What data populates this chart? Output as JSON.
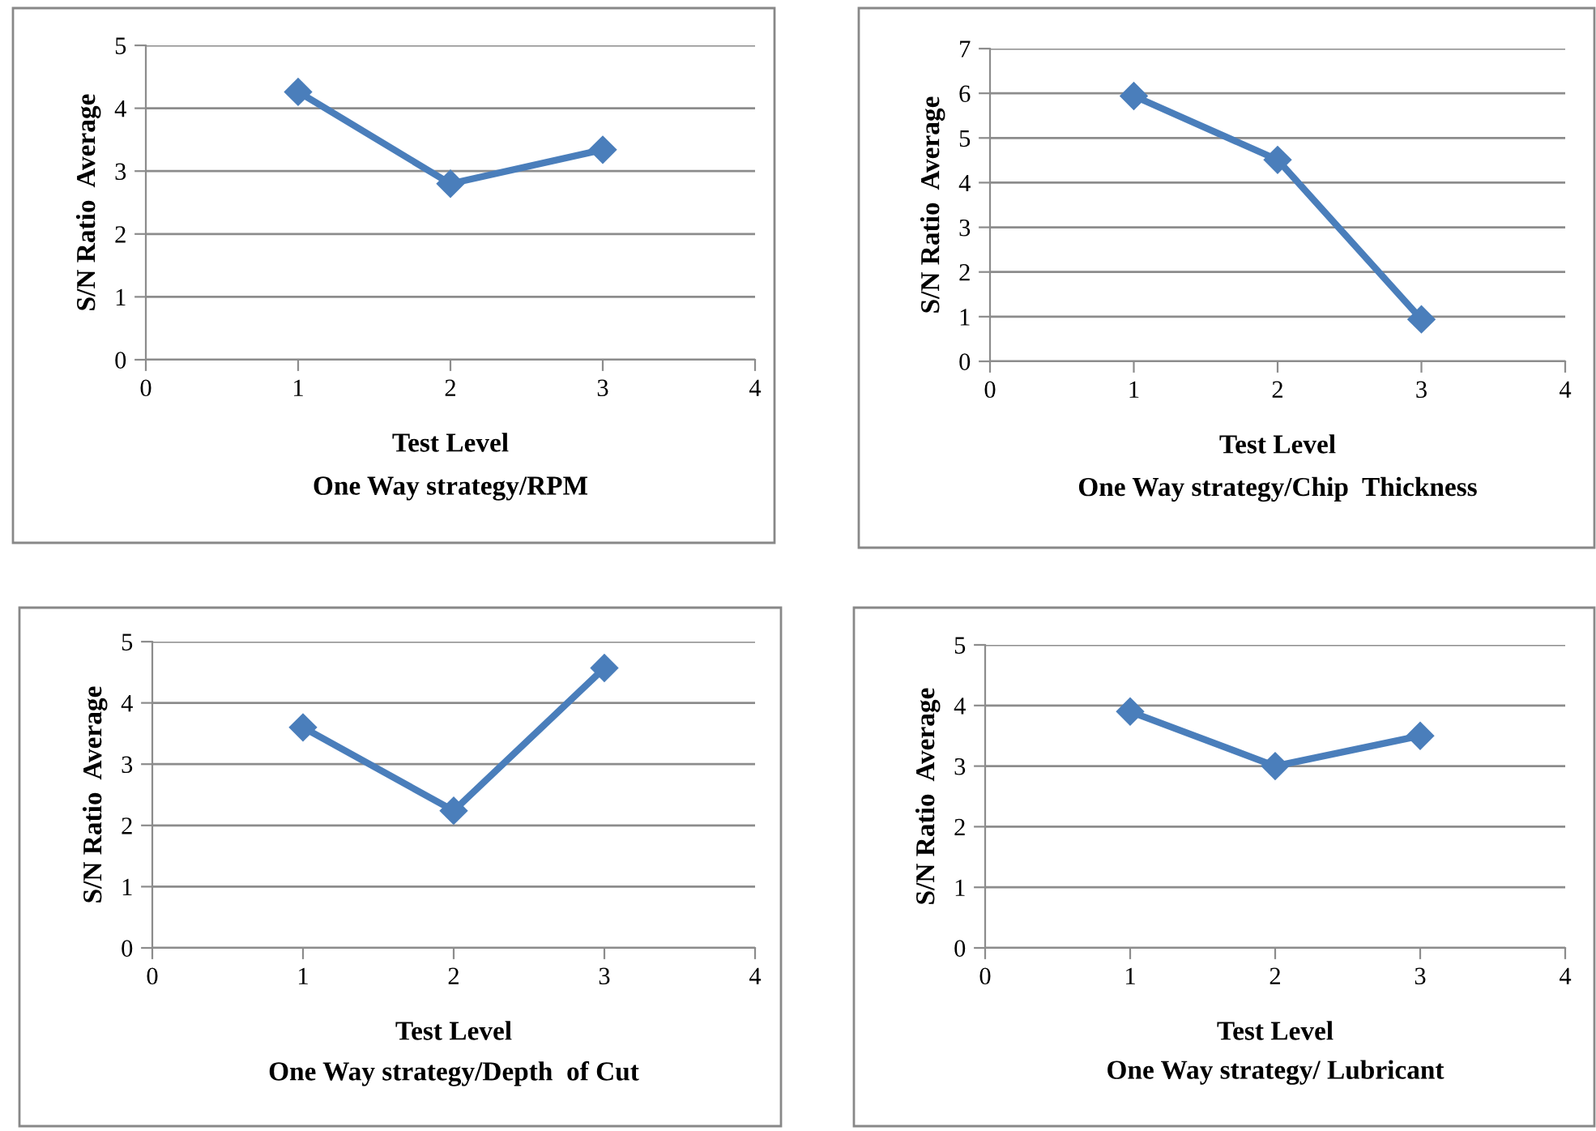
{
  "chart_data": [
    {
      "type": "line",
      "title": "One Way strategy/RPM",
      "xlabel": "Test Level",
      "ylabel": "S/N Ratio  Average",
      "x": [
        1,
        2,
        3
      ],
      "series": [
        {
          "color": "#4a7ebb",
          "values": [
            4.26,
            2.8,
            3.34
          ]
        }
      ],
      "xlim": [
        0,
        4
      ],
      "xticks": [
        0,
        1,
        2,
        3,
        4
      ],
      "ylim": [
        0,
        5
      ],
      "yticks": [
        0,
        1,
        2,
        3,
        4,
        5
      ],
      "grid": "y",
      "marker": "diamond",
      "line_style": "solid"
    },
    {
      "type": "line",
      "title": "One Way strategy/Chip  Thickness",
      "xlabel": "Test Level",
      "ylabel": "S/N Ratio  Average",
      "x": [
        1,
        2,
        3
      ],
      "series": [
        {
          "color": "#4a7ebb",
          "values": [
            5.94,
            4.51,
            0.94
          ]
        }
      ],
      "xlim": [
        0,
        4
      ],
      "xticks": [
        0,
        1,
        2,
        3,
        4
      ],
      "ylim": [
        0,
        7
      ],
      "yticks": [
        0,
        1,
        2,
        3,
        4,
        5,
        6,
        7
      ],
      "grid": "y",
      "marker": "diamond",
      "line_style": "solid"
    },
    {
      "type": "line",
      "title": "One Way strategy/Depth  of Cut",
      "xlabel": "Test Level",
      "ylabel": "S/N Ratio  Average",
      "x": [
        1,
        2,
        3
      ],
      "series": [
        {
          "color": "#4a7ebb",
          "values": [
            3.6,
            2.24,
            4.57
          ]
        }
      ],
      "xlim": [
        0,
        4
      ],
      "xticks": [
        0,
        1,
        2,
        3,
        4
      ],
      "ylim": [
        0,
        5
      ],
      "yticks": [
        0,
        1,
        2,
        3,
        4,
        5
      ],
      "grid": "y",
      "marker": "diamond",
      "line_style": "solid"
    },
    {
      "type": "line",
      "title": "One Way strategy/ Lubricant",
      "xlabel": "Test Level",
      "ylabel": "S/N Ratio  Average",
      "x": [
        1,
        2,
        3
      ],
      "series": [
        {
          "color": "#4a7ebb",
          "values": [
            3.9,
            3.0,
            3.5
          ]
        }
      ],
      "xlim": [
        0,
        4
      ],
      "xticks": [
        0,
        1,
        2,
        3,
        4
      ],
      "ylim": [
        0,
        5
      ],
      "yticks": [
        0,
        1,
        2,
        3,
        4,
        5
      ],
      "grid": "y",
      "marker": "diamond",
      "line_style": "solid"
    }
  ]
}
